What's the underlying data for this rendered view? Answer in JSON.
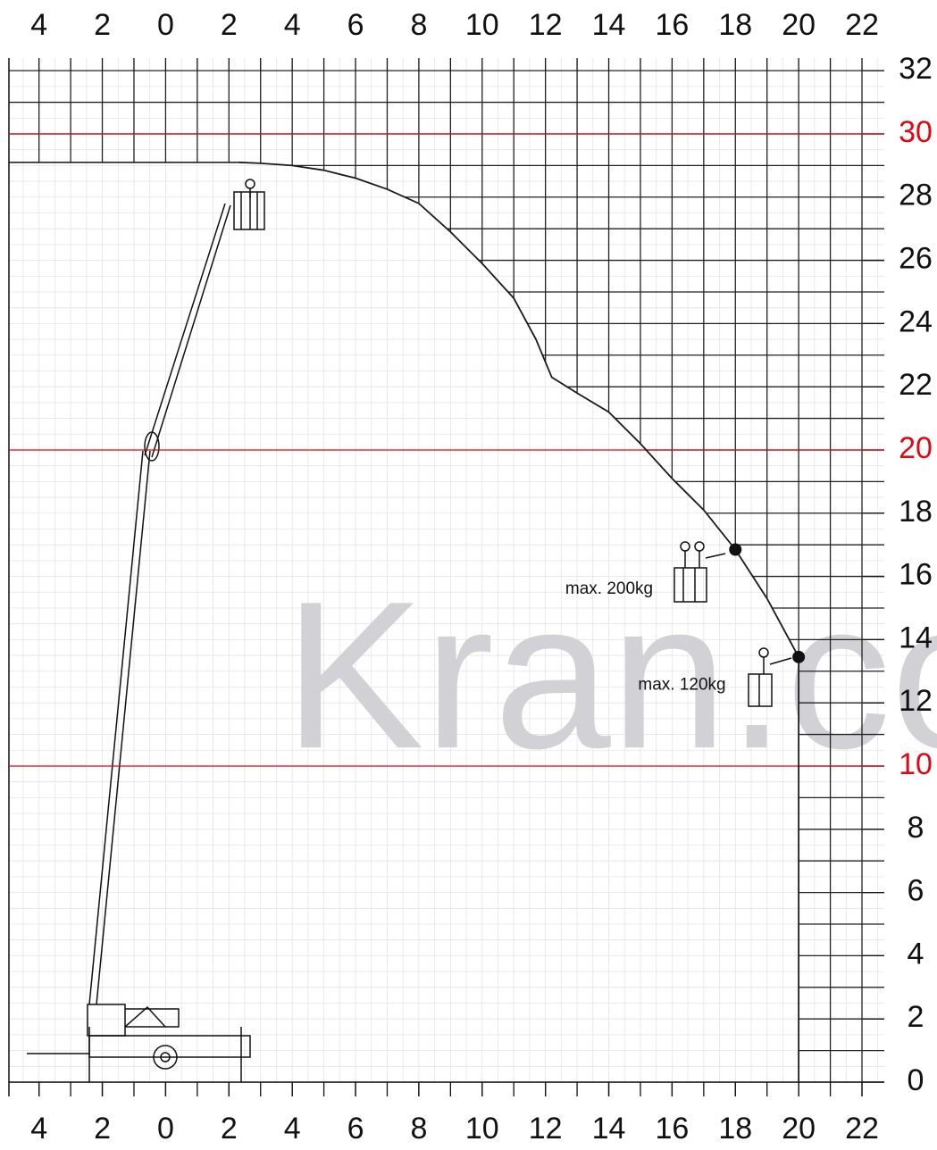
{
  "chart_data": {
    "type": "line",
    "watermark": "Kran.co",
    "xlim": [
      -4.95,
      24.37
    ],
    "ylim": [
      0,
      32.4
    ],
    "xticks": [
      {
        "value": -4,
        "label": "4"
      },
      {
        "value": -2,
        "label": "2"
      },
      0,
      2,
      4,
      6,
      8,
      10,
      12,
      14,
      16,
      18,
      20,
      22
    ],
    "yticks": [
      0,
      2,
      4,
      6,
      8,
      10,
      12,
      14,
      16,
      18,
      20,
      22,
      24,
      26,
      28,
      30,
      32
    ],
    "grid_step": 1,
    "minor_grid_step": 0.5,
    "highlight_lines": [
      10,
      20,
      30
    ],
    "highlight_color": "#e30613",
    "envelope": {
      "color": "#1a1a1a",
      "x": [
        2.3,
        3,
        4,
        5,
        6,
        7,
        8,
        9,
        10,
        11,
        11.7,
        12.2,
        13,
        14,
        15,
        16,
        17,
        18,
        19,
        20,
        20
      ],
      "y": [
        29.1,
        29.07,
        29,
        28.85,
        28.6,
        28.25,
        27.8,
        26.9,
        25.9,
        24.8,
        23.5,
        22.3,
        21.8,
        21.2,
        20.2,
        19.1,
        18.1,
        16.85,
        15.3,
        13.45,
        0
      ]
    },
    "points": {
      "x": [
        18,
        20
      ],
      "y": [
        16.85,
        13.45
      ]
    },
    "annotations": [
      {
        "text": "max. 200kg",
        "x": 15.4,
        "y": 15.6
      },
      {
        "text": "max. 120kg",
        "x": 17.7,
        "y": 12.55
      }
    ]
  }
}
